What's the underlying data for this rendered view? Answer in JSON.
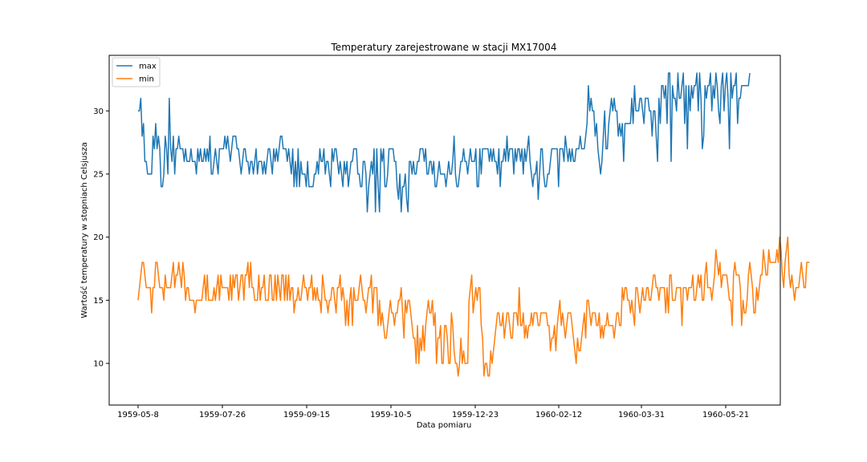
{
  "chart_data": {
    "type": "line",
    "title": "Temperatury zarejestrowane w stacji MX17004",
    "xlabel": "Data pomiaru",
    "ylabel": "Wartość temperatury w stopniach Celsjusza",
    "xticks": [
      "1959-05-8",
      "1959-07-26",
      "1959-09-15",
      "1959-10-5",
      "1959-12-23",
      "1960-02-12",
      "1960-03-31",
      "1960-05-21"
    ],
    "yticks": [
      10,
      15,
      20,
      25,
      30
    ],
    "ylim": [
      6.7,
      34.4
    ],
    "grid": false,
    "legend_position": "upper-left",
    "series": [
      {
        "name": "max",
        "color": "#1f77b4",
        "values": [
          30,
          30,
          31,
          28,
          29,
          26,
          26,
          25,
          25,
          25,
          25,
          28,
          27,
          29,
          27,
          28,
          27,
          24,
          24,
          25,
          28,
          27,
          25,
          31,
          27,
          26,
          28,
          25,
          27,
          27,
          28,
          27,
          27,
          27,
          26,
          27,
          26,
          26,
          26,
          27,
          26,
          26,
          26,
          25,
          27,
          26,
          27,
          26,
          26,
          27,
          26,
          27,
          26,
          28,
          25,
          25,
          26,
          27,
          26,
          25,
          27,
          27,
          27,
          27,
          28,
          27,
          28,
          27,
          26,
          27,
          28,
          28,
          28,
          27,
          27,
          26,
          25,
          26,
          27,
          27,
          26,
          26,
          25,
          26,
          26,
          25,
          26,
          27,
          25,
          26,
          26,
          26,
          25,
          26,
          25,
          26,
          27,
          27,
          26,
          25,
          27,
          26,
          27,
          26,
          27,
          28,
          28,
          27,
          27,
          27,
          26,
          27,
          26,
          25,
          27,
          24,
          26,
          24,
          27,
          24,
          26,
          25,
          25,
          25,
          24,
          26,
          24,
          24,
          24,
          24,
          25,
          25,
          26,
          25,
          27,
          26,
          26,
          27,
          25,
          26,
          26,
          25,
          24,
          27,
          26,
          27,
          27,
          26,
          25,
          26,
          25,
          24,
          26,
          25,
          26,
          24,
          25,
          26,
          26,
          27,
          27,
          27,
          25,
          25,
          24,
          24,
          26,
          26,
          25,
          22,
          24,
          25,
          26,
          25,
          27,
          22,
          27,
          24,
          22,
          27,
          26,
          27,
          24,
          24,
          25,
          27,
          27,
          27,
          27,
          26,
          26,
          24,
          23,
          25,
          22,
          24,
          24,
          25,
          23,
          22,
          26,
          26,
          25,
          26,
          25,
          25,
          26,
          26,
          27,
          27,
          27,
          26,
          27,
          25,
          25,
          26,
          26,
          25,
          26,
          24,
          24,
          25,
          26,
          25,
          25,
          25,
          25,
          24,
          25,
          26,
          25,
          25,
          26,
          28,
          25,
          24,
          24,
          25,
          26,
          26,
          27,
          26,
          26,
          25,
          26,
          27,
          26,
          26,
          26,
          27,
          24,
          24,
          27,
          25,
          27,
          27,
          27,
          27,
          27,
          26,
          27,
          26,
          27,
          26,
          26,
          25,
          27,
          24,
          26,
          26,
          27,
          26,
          28,
          26,
          27,
          27,
          27,
          25,
          27,
          26,
          27,
          27,
          26,
          27,
          25,
          27,
          26,
          27,
          28,
          26,
          25,
          24,
          25,
          25,
          26,
          23,
          25,
          27,
          27,
          25,
          24,
          24,
          25,
          25,
          26,
          27,
          27,
          27,
          27,
          27,
          24,
          27,
          27,
          27,
          26,
          28,
          27,
          26,
          27,
          26,
          27,
          26,
          26,
          27,
          27,
          27,
          28,
          27,
          27,
          27,
          28,
          29,
          32,
          30,
          31,
          30,
          30,
          28,
          29,
          27,
          26,
          25,
          26,
          28,
          30,
          27,
          27,
          29,
          30,
          31,
          30,
          31,
          30,
          30,
          28,
          29,
          28,
          29,
          26,
          29,
          29,
          29,
          29,
          29,
          31,
          29,
          32,
          30,
          30,
          30,
          31,
          31,
          30,
          29,
          31,
          31,
          31,
          30,
          30,
          28,
          30,
          30,
          28,
          26,
          31,
          29,
          32,
          32,
          31,
          32,
          29,
          33,
          33,
          26,
          32,
          31,
          31,
          30,
          33,
          31,
          31,
          32,
          33,
          29,
          32,
          27,
          32,
          30,
          32,
          31,
          32,
          32,
          33,
          30,
          33,
          31,
          27,
          28,
          32,
          31,
          32,
          32,
          33,
          30,
          32,
          31,
          33,
          32,
          30,
          29,
          32,
          33,
          30,
          32,
          33,
          31,
          27,
          33,
          31,
          32,
          32,
          33,
          29,
          31,
          31,
          32,
          32,
          32,
          32,
          32,
          32,
          33
        ]
      },
      {
        "name": "min",
        "color": "#ff7f0e",
        "values": [
          15,
          16,
          17,
          18,
          18,
          17,
          16,
          16,
          16,
          16,
          14,
          16,
          16,
          18,
          18,
          17,
          16,
          16,
          16,
          15,
          17,
          16,
          16,
          16,
          16,
          17,
          18,
          16,
          17,
          17,
          18,
          17,
          16,
          18,
          17,
          15,
          16,
          16,
          15,
          15,
          15,
          15,
          14,
          15,
          15,
          15,
          15,
          15,
          16,
          17,
          15,
          17,
          15,
          15,
          15,
          15,
          16,
          15,
          16,
          17,
          15,
          17,
          16,
          16,
          16,
          16,
          16,
          15,
          17,
          15,
          17,
          16,
          17,
          17,
          15,
          16,
          17,
          17,
          15,
          17,
          17,
          18,
          16,
          18,
          16,
          16,
          15,
          15,
          15,
          17,
          15,
          16,
          16,
          17,
          15,
          15,
          15,
          17,
          17,
          15,
          15,
          17,
          15,
          17,
          16,
          15,
          17,
          17,
          15,
          17,
          15,
          17,
          15,
          16,
          16,
          14,
          15,
          15,
          16,
          15,
          15,
          16,
          17,
          16,
          16,
          15,
          16,
          16,
          17,
          15,
          16,
          15,
          16,
          15,
          15,
          14,
          17,
          16,
          15,
          15,
          14,
          15,
          15,
          16,
          16,
          15,
          14,
          16,
          16,
          17,
          15,
          16,
          15,
          13,
          15,
          13,
          15,
          16,
          13,
          16,
          15,
          15,
          15,
          16,
          17,
          16,
          15,
          15,
          14,
          15,
          16,
          16,
          17,
          14,
          16,
          16,
          16,
          13,
          15,
          13,
          14,
          13,
          12,
          12,
          13,
          14,
          15,
          14,
          14,
          13,
          14,
          14,
          15,
          15,
          16,
          14,
          12,
          15,
          14,
          15,
          15,
          14,
          13,
          12,
          12,
          10,
          13,
          10,
          12,
          11,
          13,
          11,
          13,
          14,
          15,
          14,
          14,
          15,
          13,
          14,
          10,
          12,
          12,
          13,
          10,
          10,
          13,
          13,
          12,
          10,
          10,
          14,
          13,
          11,
          10,
          10,
          9,
          10,
          12,
          10,
          11,
          10,
          10,
          10,
          15,
          16,
          17,
          14,
          15,
          16,
          15,
          16,
          16,
          13,
          12,
          9,
          10,
          10,
          9,
          9,
          11,
          10,
          11,
          12,
          13,
          14,
          14,
          13,
          13,
          14,
          12,
          13,
          14,
          14,
          13,
          12,
          12,
          14,
          14,
          14,
          13,
          16,
          13,
          13,
          14,
          12,
          13,
          12,
          13,
          13,
          14,
          13,
          14,
          14,
          14,
          13,
          13,
          14,
          14,
          14,
          14,
          14,
          13,
          13,
          11,
          12,
          12,
          13,
          11,
          13,
          14,
          15,
          13,
          14,
          13,
          12,
          13,
          14,
          14,
          14,
          13,
          12,
          11,
          10,
          12,
          11,
          11,
          12,
          13,
          14,
          12,
          15,
          15,
          14,
          13,
          14,
          14,
          14,
          13,
          13,
          14,
          12,
          13,
          12,
          13,
          13,
          14,
          13,
          13,
          13,
          13,
          12,
          13,
          14,
          14,
          13,
          13,
          16,
          15,
          16,
          16,
          15,
          15,
          14,
          15,
          14,
          13,
          16,
          16,
          15,
          14,
          15,
          16,
          15,
          15,
          16,
          16,
          15,
          15,
          16,
          17,
          17,
          16,
          16,
          15,
          16,
          16,
          16,
          16,
          14,
          16,
          14,
          17,
          17,
          15,
          15,
          15,
          16,
          16,
          16,
          16,
          13,
          16,
          16,
          16,
          15,
          16,
          16,
          16,
          17,
          15,
          15,
          16,
          17,
          16,
          17,
          15,
          15,
          17,
          18,
          16,
          16,
          16,
          15,
          16,
          17,
          19,
          18,
          17,
          18,
          16,
          17,
          17,
          17,
          17,
          16,
          15,
          15,
          13,
          17,
          18,
          17,
          17,
          17,
          16,
          13,
          15,
          14,
          14,
          15,
          17,
          18,
          17,
          16,
          14,
          14,
          16,
          15,
          16,
          17,
          17,
          19,
          18,
          17,
          17,
          19,
          18,
          18,
          18,
          18,
          18,
          19,
          18,
          20,
          19,
          17,
          16,
          18,
          19,
          20,
          17,
          16,
          17,
          16,
          15,
          16,
          16,
          16,
          17,
          18,
          17,
          16,
          16,
          18,
          18,
          18
        ]
      }
    ]
  }
}
